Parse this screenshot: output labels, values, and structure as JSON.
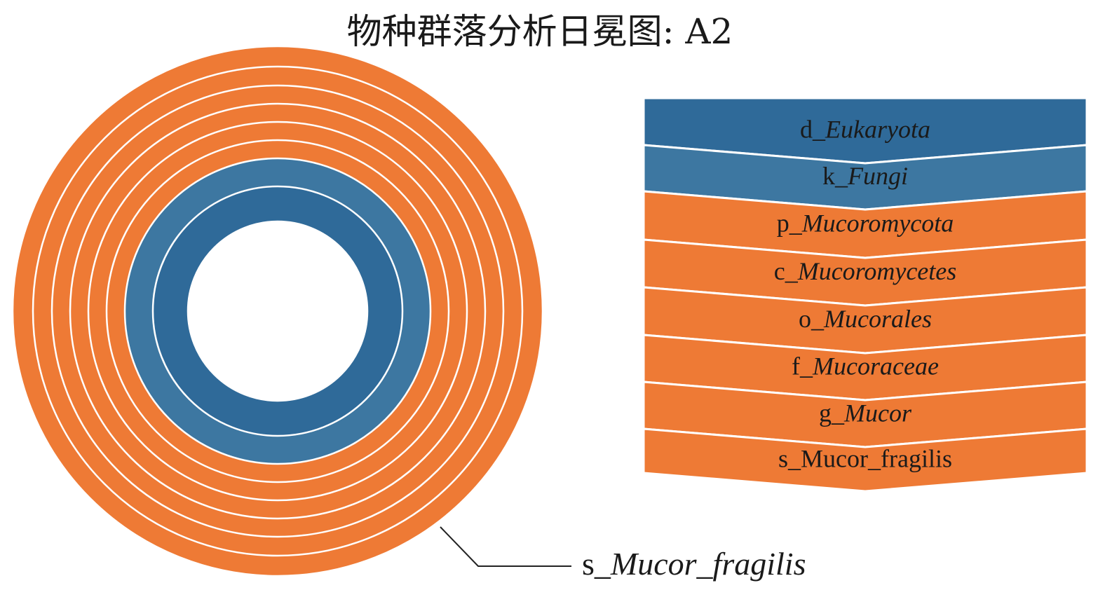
{
  "chart_data": {
    "type": "sunburst",
    "title": "物种群落分析日冕图: A2",
    "levels": [
      {
        "prefix": "d_",
        "name": "Eukaryota",
        "italic": true,
        "color": "#2f6a99",
        "value": 100
      },
      {
        "prefix": "k_",
        "name": "Fungi",
        "italic": true,
        "color": "#3d77a1",
        "value": 100
      },
      {
        "prefix": "p_",
        "name": "Mucoromycota",
        "italic": true,
        "color": "#ee7a35",
        "value": 100
      },
      {
        "prefix": "c_",
        "name": "Mucoromycetes",
        "italic": true,
        "color": "#ee7a35",
        "value": 100
      },
      {
        "prefix": "o_",
        "name": "Mucorales",
        "italic": true,
        "color": "#ee7a35",
        "value": 100
      },
      {
        "prefix": "f_",
        "name": "Mucoraceae",
        "italic": true,
        "color": "#ee7a35",
        "value": 100
      },
      {
        "prefix": "g_",
        "name": "Mucor",
        "italic": true,
        "color": "#ee7a35",
        "value": 100
      },
      {
        "prefix": "s_",
        "name": "Mucor_fragilis",
        "italic": false,
        "color": "#ee7a35",
        "value": 100
      }
    ],
    "callout": {
      "prefix": "s_",
      "name": "Mucor_fragilis"
    }
  }
}
